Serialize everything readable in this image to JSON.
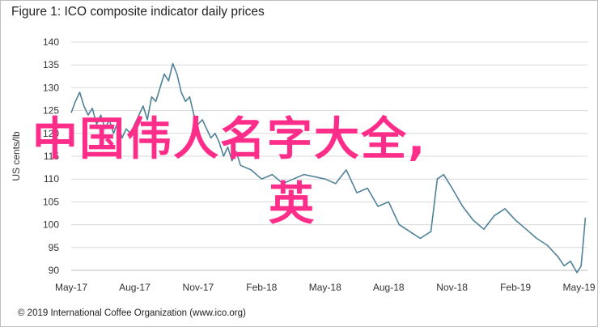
{
  "title": "Figure 1: ICO composite indicator daily prices",
  "footer": "© 2019 International Coffee Organization (www.ico.org)",
  "overlay": {
    "line1": "中国伟人名字大全,",
    "line2": "英",
    "color": "#ff2d8a"
  },
  "chart_data": {
    "type": "line",
    "title": "Figure 1: ICO composite indicator daily prices",
    "xlabel": "",
    "ylabel": "US cents/lb",
    "ylim": [
      90,
      140
    ],
    "yticks": [
      90,
      95,
      100,
      105,
      110,
      115,
      120,
      125,
      130,
      135,
      140
    ],
    "xticks": [
      "May-17",
      "Aug-17",
      "Nov-17",
      "Feb-18",
      "May-18",
      "Aug-18",
      "Nov-18",
      "Feb-19",
      "May-19"
    ],
    "xlim": [
      0,
      24.4
    ],
    "grid": "horizontal",
    "line_color": "#4f8198",
    "series": [
      {
        "name": "",
        "x": [
          0,
          0.2,
          0.4,
          0.6,
          0.8,
          1.0,
          1.2,
          1.4,
          1.6,
          1.8,
          2.0,
          2.2,
          2.4,
          2.6,
          2.8,
          3.0,
          3.2,
          3.4,
          3.6,
          3.8,
          4.0,
          4.2,
          4.4,
          4.6,
          4.8,
          5.0,
          5.2,
          5.4,
          5.6,
          5.8,
          6.0,
          6.2,
          6.4,
          6.6,
          6.8,
          7.0,
          7.2,
          7.4,
          7.6,
          7.8,
          8.0,
          8.5,
          9.0,
          9.5,
          10.0,
          10.5,
          11.0,
          11.5,
          12.0,
          12.5,
          13.0,
          13.5,
          14.0,
          14.5,
          15.0,
          15.5,
          16.0,
          16.5,
          17.0,
          17.3,
          17.6,
          18.0,
          18.5,
          19.0,
          19.5,
          20.0,
          20.5,
          21.0,
          21.5,
          22.0,
          22.5,
          23.0,
          23.3,
          23.6,
          23.9,
          24.1,
          24.3
        ],
        "values": [
          124.5,
          127,
          129,
          126,
          124,
          125.5,
          122,
          124,
          121,
          123,
          120,
          122.5,
          119,
          121,
          120,
          122,
          124,
          126,
          123,
          128,
          127,
          130,
          133,
          131.5,
          135.3,
          133,
          129,
          127,
          128,
          124,
          122,
          123,
          121,
          119,
          120,
          118,
          115,
          117,
          114,
          116,
          113,
          112,
          110,
          111,
          109,
          110,
          111,
          110.5,
          110,
          109,
          112,
          107,
          108,
          104,
          105,
          100,
          98.5,
          97,
          98.5,
          110,
          111,
          108,
          104,
          101,
          99,
          102,
          103.5,
          101,
          99,
          97,
          95.5,
          93,
          91,
          92,
          89.5,
          91,
          101.5
        ]
      }
    ]
  }
}
